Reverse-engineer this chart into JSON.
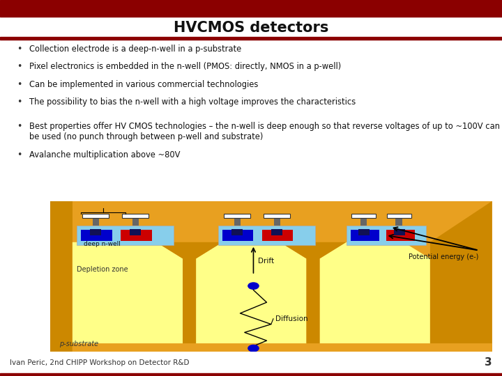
{
  "title": "HVCMOS detectors",
  "header_bg": "#8B0000",
  "bg_color": "#FFFFFF",
  "bullets": [
    "Collection electrode is a deep-n-well in a p-substrate",
    "Pixel electronics is embedded in the n-well (PMOS: directly, NMOS in a p-well)",
    "Can be implemented in various commercial technologies",
    "The possibility to bias the n-well with a high voltage improves the characteristics",
    "Best properties offer HV CMOS technologies – the n-well is deep enough so that reverse voltages of up to ~100V can be used (no punch through between p-well and substrate)",
    "Avalanche multiplication above ~80V"
  ],
  "footer_text": "Ivan Peric, 2nd CHIPP Workshop on Detector R&D",
  "page_number": "3",
  "substrate_color": "#E8A020",
  "depletion_color": "#FFFF88",
  "nwell_color": "#87CEEB",
  "wall_color": "#CC8800",
  "red_implant": "#CC0000",
  "blue_implant": "#0000CC",
  "dark_implant": "#111155",
  "metal_color": "#666666"
}
